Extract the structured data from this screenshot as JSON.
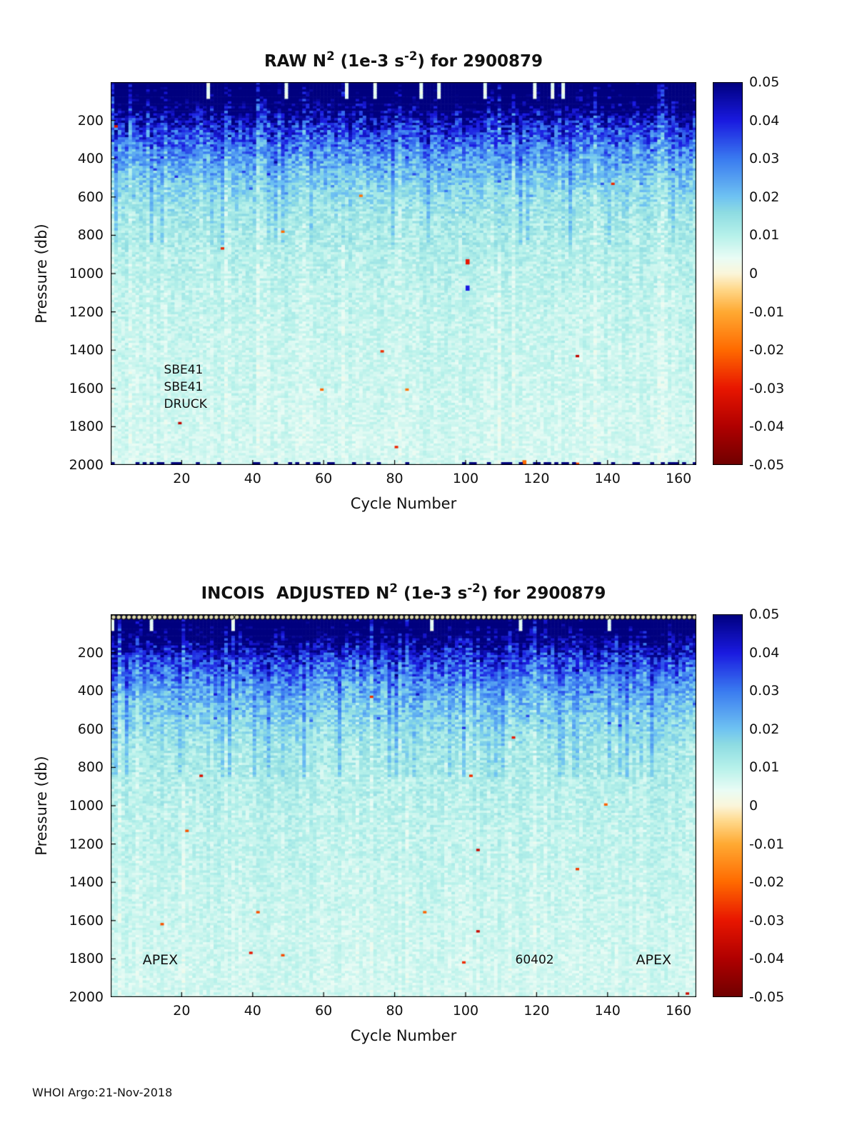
{
  "page": {
    "background": "#ffffff"
  },
  "footer": {
    "caption": "WHOI Argo:21-Nov-2018"
  },
  "chart_data": [
    {
      "type": "heatmap",
      "title_segments": [
        {
          "text": "RAW N"
        },
        {
          "text": "2",
          "sup": true
        },
        {
          "text": " (1e-3 s"
        },
        {
          "text": "-2",
          "sup": true
        },
        {
          "text": ") for 2900879"
        }
      ],
      "xlabel": "Cycle Number",
      "ylabel": "Pressure (db)",
      "xlim": [
        0,
        165
      ],
      "ylim": [
        0,
        2000
      ],
      "x_ticks": [
        20,
        40,
        60,
        80,
        100,
        120,
        140,
        160
      ],
      "y_ticks": [
        200,
        400,
        600,
        800,
        1000,
        1200,
        1400,
        1600,
        1800,
        2000
      ],
      "colorbar": {
        "min": -0.05,
        "max": 0.05,
        "tick_values": [
          0.05,
          0.04,
          0.03,
          0.02,
          0.01,
          0,
          -0.01,
          -0.02,
          -0.03,
          -0.04,
          -0.05
        ],
        "tick_labels": [
          "0.05",
          "0.04",
          "0.03",
          "0.02",
          "0.01",
          "0",
          "-0.01",
          "-0.02",
          "-0.03",
          "-0.04",
          "-0.05"
        ],
        "stops": [
          [
            -0.05,
            "#700000"
          ],
          [
            -0.04,
            "#b00000"
          ],
          [
            -0.03,
            "#e81600"
          ],
          [
            -0.02,
            "#ff6a00"
          ],
          [
            -0.01,
            "#ffaa33"
          ],
          [
            -0.004,
            "#ffd98c"
          ],
          [
            0.0,
            "#fbf6da"
          ],
          [
            0.004,
            "#eafcf5"
          ],
          [
            0.01,
            "#b6f1ea"
          ],
          [
            0.016,
            "#8edce2"
          ],
          [
            0.02,
            "#6fc3f2"
          ],
          [
            0.03,
            "#3a7bf0"
          ],
          [
            0.04,
            "#1a1ae0"
          ],
          [
            0.05,
            "#00007f"
          ]
        ]
      },
      "depth_profile": {
        "pressure": [
          0,
          60,
          150,
          250,
          350,
          450,
          550,
          700,
          900,
          1100,
          1400,
          1700,
          2000
        ],
        "mean_n2": [
          0.062,
          0.06,
          0.05,
          0.036,
          0.027,
          0.021,
          0.016,
          0.012,
          0.01,
          0.0085,
          0.0075,
          0.0068,
          0.0062
        ],
        "noise_amp": [
          0.01,
          0.012,
          0.013,
          0.011,
          0.009,
          0.007,
          0.006,
          0.005,
          0.004,
          0.0035,
          0.003,
          0.0028,
          0.0025
        ]
      },
      "point_anomalies": [
        {
          "x": 100,
          "y": 940,
          "value": -0.03
        },
        {
          "x": 100,
          "y": 1080,
          "value": 0.04
        },
        {
          "x": 87,
          "y": 300,
          "value": 0.045
        },
        {
          "x": 116,
          "y": 1990,
          "value": -0.02
        }
      ],
      "annotations": [
        {
          "x": 15,
          "y": 1505,
          "text": "SBE41",
          "size": 17
        },
        {
          "x": 15,
          "y": 1595,
          "text": "SBE41",
          "size": 17
        },
        {
          "x": 15,
          "y": 1685,
          "text": "DRUCK",
          "size": 17
        }
      ],
      "bottom_artifacts": true,
      "top_markers": false
    },
    {
      "type": "heatmap",
      "title_segments": [
        {
          "text": "INCOIS  ADJUSTED N"
        },
        {
          "text": "2",
          "sup": true
        },
        {
          "text": " (1e-3 s"
        },
        {
          "text": "-2",
          "sup": true
        },
        {
          "text": ") for 2900879"
        }
      ],
      "xlabel": "Cycle Number",
      "ylabel": "Pressure (db)",
      "xlim": [
        0,
        165
      ],
      "ylim": [
        0,
        2000
      ],
      "x_ticks": [
        20,
        40,
        60,
        80,
        100,
        120,
        140,
        160
      ],
      "y_ticks": [
        200,
        400,
        600,
        800,
        1000,
        1200,
        1400,
        1600,
        1800,
        2000
      ],
      "colorbar": {
        "min": -0.05,
        "max": 0.05,
        "tick_values": [
          0.05,
          0.04,
          0.03,
          0.02,
          0.01,
          0,
          -0.01,
          -0.02,
          -0.03,
          -0.04,
          -0.05
        ],
        "tick_labels": [
          "0.05",
          "0.04",
          "0.03",
          "0.02",
          "0.01",
          "0",
          "-0.01",
          "-0.02",
          "-0.03",
          "-0.04",
          "-0.05"
        ],
        "stops": [
          [
            -0.05,
            "#700000"
          ],
          [
            -0.04,
            "#b00000"
          ],
          [
            -0.03,
            "#e81600"
          ],
          [
            -0.02,
            "#ff6a00"
          ],
          [
            -0.01,
            "#ffaa33"
          ],
          [
            -0.004,
            "#ffd98c"
          ],
          [
            0.0,
            "#fbf6da"
          ],
          [
            0.004,
            "#eafcf5"
          ],
          [
            0.01,
            "#b6f1ea"
          ],
          [
            0.016,
            "#8edce2"
          ],
          [
            0.02,
            "#6fc3f2"
          ],
          [
            0.03,
            "#3a7bf0"
          ],
          [
            0.04,
            "#1a1ae0"
          ],
          [
            0.05,
            "#00007f"
          ]
        ]
      },
      "depth_profile": {
        "pressure": [
          0,
          60,
          150,
          250,
          350,
          450,
          550,
          700,
          900,
          1100,
          1400,
          1700,
          2000
        ],
        "mean_n2": [
          0.062,
          0.06,
          0.048,
          0.034,
          0.026,
          0.02,
          0.016,
          0.012,
          0.01,
          0.0088,
          0.0078,
          0.007,
          0.0064
        ],
        "noise_amp": [
          0.01,
          0.012,
          0.012,
          0.01,
          0.008,
          0.007,
          0.006,
          0.005,
          0.004,
          0.0035,
          0.003,
          0.0028,
          0.0025
        ]
      },
      "point_anomalies": [],
      "annotations": [
        {
          "x": 9,
          "y": 1810,
          "text": "APEX",
          "size": 19
        },
        {
          "x": 114,
          "y": 1810,
          "text": "60402",
          "size": 17
        },
        {
          "x": 148,
          "y": 1810,
          "text": "APEX",
          "size": 19
        }
      ],
      "bottom_artifacts": false,
      "top_markers": true
    }
  ]
}
